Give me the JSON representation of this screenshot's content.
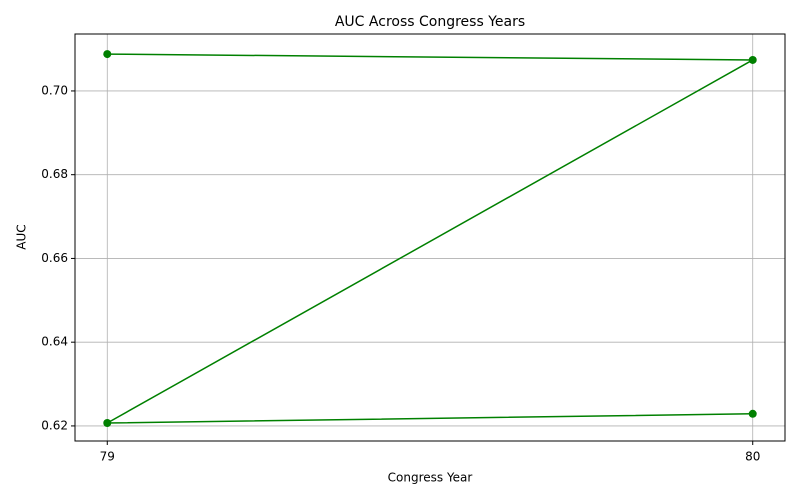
{
  "chart_data": {
    "type": "line",
    "title": "AUC Across Congress Years",
    "x_label": "Congress Year",
    "y_label": "AUC",
    "x": [
      79,
      80,
      79,
      80
    ],
    "series": [
      {
        "name": "AUC",
        "color": "#008000",
        "values": [
          0.7088,
          0.7074,
          0.6207,
          0.6229
        ]
      }
    ],
    "xlim": [
      78.95,
      80.05
    ],
    "xticks": [
      79,
      80
    ],
    "ylim": [
      0.6164,
      0.7136
    ],
    "yticks": [
      0.62,
      0.64,
      0.66,
      0.68,
      {
        "value": 0.7,
        "label": "0.70"
      }
    ],
    "grid": true,
    "marker": "circle"
  }
}
